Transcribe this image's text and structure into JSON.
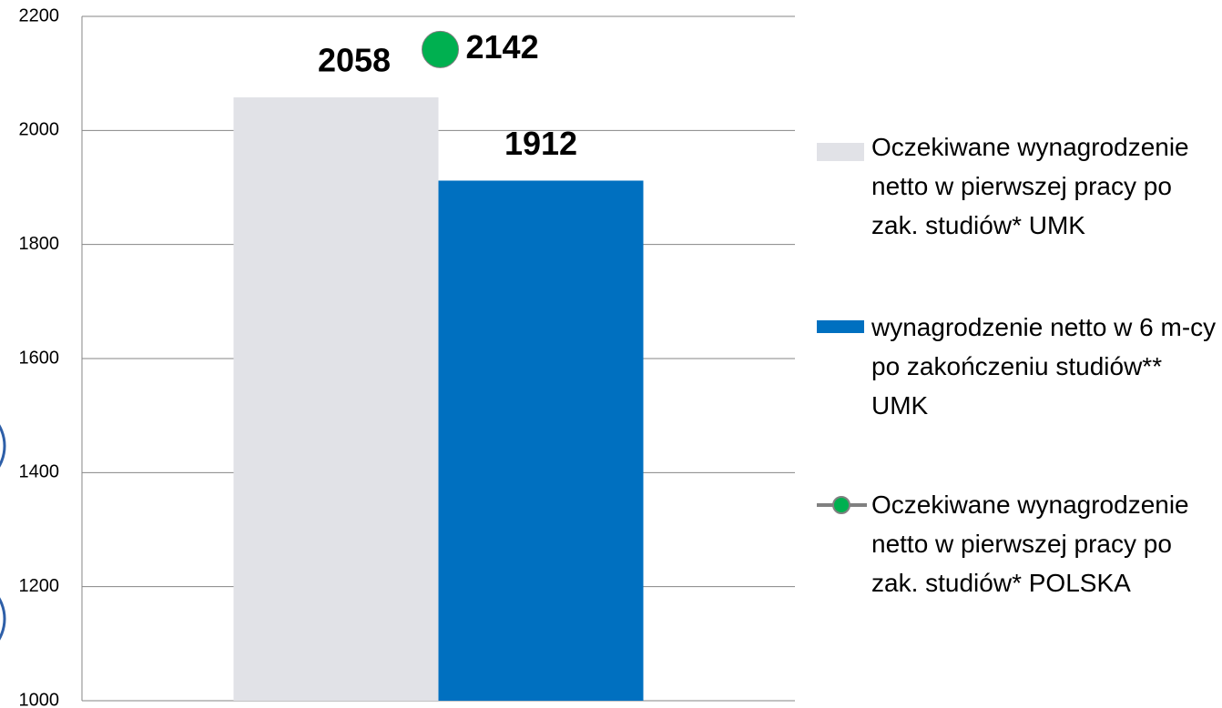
{
  "chart_data": {
    "type": "bar",
    "categories": [
      null
    ],
    "series": [
      {
        "name": "Oczekiwane wynagrodzenie netto w pierwszej pracy po zak. studiów* UMK",
        "color": "#e1e2e7",
        "values": [
          2058
        ]
      },
      {
        "name": "wynagrodzenie netto w 6 m-cy po zakończeniu studiów** UMK",
        "color": "#0070c0",
        "values": [
          1912
        ]
      },
      {
        "name": "Oczekiwane wynagrodzenie netto w pierwszej pracy po zak. studiów* POLSKA",
        "type": "line",
        "color": "#00b050",
        "line_color": "#808080",
        "values": [
          2142
        ]
      }
    ],
    "ylim": [
      1000,
      2200
    ],
    "yticks": [
      1000,
      1200,
      1400,
      1600,
      1800,
      2000,
      2200
    ],
    "grid": true,
    "legend": "right"
  }
}
